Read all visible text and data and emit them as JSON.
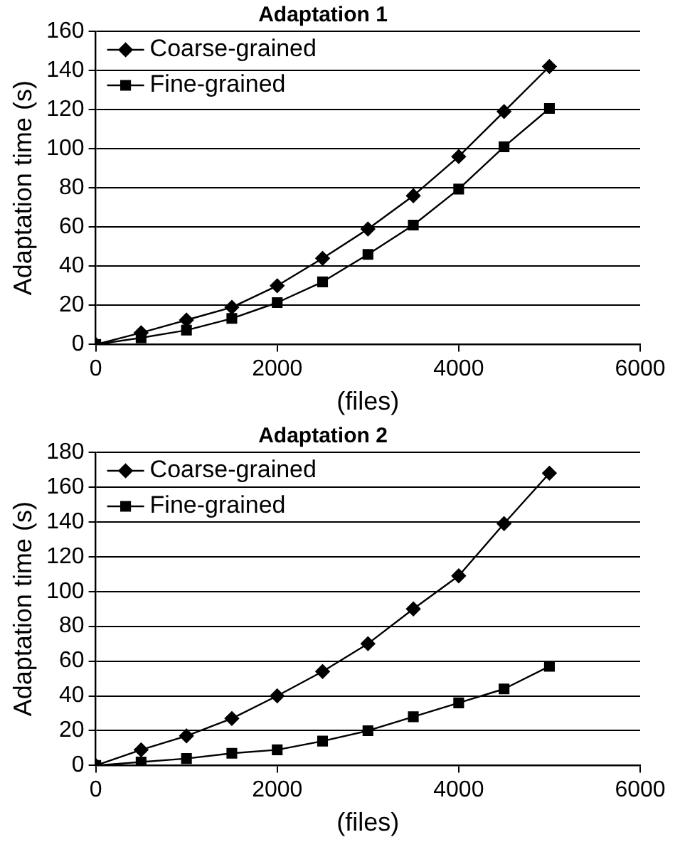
{
  "chart_data": [
    {
      "type": "line",
      "title": "Adaptation 1",
      "xlabel": "(files)",
      "ylabel": "Adaptation time (s)",
      "x": [
        0,
        500,
        1000,
        1500,
        2000,
        2500,
        3000,
        3500,
        4000,
        4500,
        5000
      ],
      "series": [
        {
          "name": "Coarse-grained",
          "color": "#000000",
          "marker": "diamond",
          "values": [
            0,
            6,
            12.5,
            19,
            30,
            44,
            59,
            76,
            96,
            119,
            142
          ]
        },
        {
          "name": "Fine-grained",
          "color": "#000000",
          "marker": "square",
          "values": [
            0,
            3.4,
            7.3,
            13.3,
            21.4,
            32,
            46,
            61,
            79.4,
            101,
            120.6
          ]
        }
      ],
      "xlim": [
        0,
        6000
      ],
      "xticks": [
        0,
        2000,
        4000,
        6000
      ],
      "ylim": [
        0,
        160
      ],
      "yticks": [
        0,
        20,
        40,
        60,
        80,
        100,
        120,
        140,
        160
      ],
      "grid": "y",
      "legend": "top left",
      "line_style": "solid"
    },
    {
      "type": "line",
      "title": "Adaptation 2",
      "xlabel": "(files)",
      "ylabel": "Adaptation time (s)",
      "x": [
        0,
        500,
        1000,
        1500,
        2000,
        2500,
        3000,
        3500,
        4000,
        4500,
        5000
      ],
      "series": [
        {
          "name": "Coarse-grained",
          "color": "#000000",
          "marker": "diamond",
          "values": [
            0,
            9,
            17,
            27,
            40,
            54,
            70,
            90,
            109,
            139,
            168
          ]
        },
        {
          "name": "Fine-grained",
          "color": "#000000",
          "marker": "square",
          "values": [
            0,
            2,
            4,
            7,
            9,
            14,
            20,
            28,
            36,
            44,
            57
          ]
        }
      ],
      "xlim": [
        0,
        6000
      ],
      "xticks": [
        0,
        2000,
        4000,
        6000
      ],
      "ylim": [
        0,
        180
      ],
      "yticks": [
        0,
        20,
        40,
        60,
        80,
        100,
        120,
        140,
        160,
        180
      ],
      "grid": "y",
      "legend": "top left",
      "line_style": "solid"
    }
  ]
}
